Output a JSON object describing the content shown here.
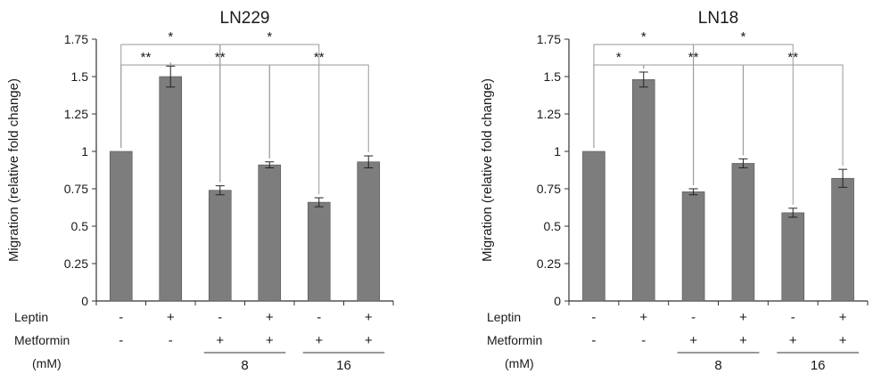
{
  "colors": {
    "bar": "#7d7d7d",
    "axis": "#333333",
    "bracket": "#9a9a9a",
    "text": "#1a1a1a"
  },
  "chart_data": [
    {
      "type": "bar",
      "title": "LN229",
      "ylabel": "Migration (relative fold change)",
      "xlabel": "",
      "ylim": [
        0,
        1.75
      ],
      "yticks": [
        "0",
        "0.25",
        "0.5",
        "0.75",
        "1",
        "1.25",
        "1.5",
        "1.75"
      ],
      "categories": [
        "1",
        "2",
        "3",
        "4",
        "5",
        "6"
      ],
      "values": [
        1.0,
        1.5,
        0.74,
        0.91,
        0.66,
        0.93
      ],
      "errors": [
        0.0,
        0.07,
        0.03,
        0.02,
        0.03,
        0.04
      ],
      "row_labels": {
        "leptin": "Leptin",
        "metformin": "Metformin",
        "unit": "(mM)"
      },
      "leptin": [
        "-",
        "+",
        "-",
        "+",
        "-",
        "+"
      ],
      "metformin": [
        "-",
        "-",
        "+",
        "+",
        "+",
        "+"
      ],
      "dose_groups": [
        {
          "label": "8",
          "bars": [
            3,
            4
          ]
        },
        {
          "label": "16",
          "bars": [
            5,
            6
          ]
        }
      ],
      "significance": [
        {
          "from": 1,
          "to": 3,
          "label": "*",
          "level": 1
        },
        {
          "from": 3,
          "to": 5,
          "label": "*",
          "level": 1
        },
        {
          "from": 1,
          "to": 2,
          "label": "**",
          "level": 2
        },
        {
          "from": 2,
          "to": 4,
          "label": "**",
          "level": 2
        },
        {
          "from": 4,
          "to": 6,
          "label": "**",
          "level": 2
        }
      ]
    },
    {
      "type": "bar",
      "title": "LN18",
      "ylabel": "Migration (relative fold change)",
      "xlabel": "",
      "ylim": [
        0,
        1.75
      ],
      "yticks": [
        "0",
        "0.25",
        "0.5",
        "0.75",
        "1",
        "1.25",
        "1.5",
        "1.75"
      ],
      "categories": [
        "1",
        "2",
        "3",
        "4",
        "5",
        "6"
      ],
      "values": [
        1.0,
        1.48,
        0.73,
        0.92,
        0.59,
        0.82
      ],
      "errors": [
        0.0,
        0.05,
        0.02,
        0.03,
        0.03,
        0.06
      ],
      "row_labels": {
        "leptin": "Leptin",
        "metformin": "Metformin",
        "unit": "(mM)"
      },
      "leptin": [
        "-",
        "+",
        "-",
        "+",
        "-",
        "+"
      ],
      "metformin": [
        "-",
        "-",
        "+",
        "+",
        "+",
        "+"
      ],
      "dose_groups": [
        {
          "label": "8",
          "bars": [
            3,
            4
          ]
        },
        {
          "label": "16",
          "bars": [
            5,
            6
          ]
        }
      ],
      "significance": [
        {
          "from": 1,
          "to": 3,
          "label": "*",
          "level": 1
        },
        {
          "from": 3,
          "to": 5,
          "label": "*",
          "level": 1
        },
        {
          "from": 1,
          "to": 2,
          "label": "*",
          "level": 2
        },
        {
          "from": 2,
          "to": 4,
          "label": "**",
          "level": 2
        },
        {
          "from": 4,
          "to": 6,
          "label": "**",
          "level": 2
        }
      ]
    }
  ]
}
